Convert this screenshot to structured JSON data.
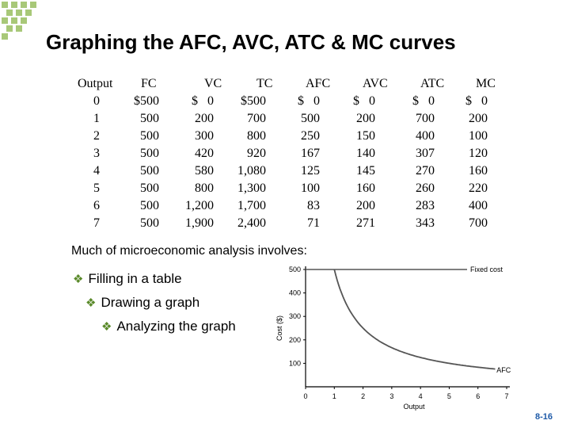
{
  "title": "Graphing the AFC, AVC, ATC & MC curves",
  "table": {
    "headers": [
      "Output",
      "FC",
      "VC",
      "TC",
      "AFC",
      "AVC",
      "ATC",
      "MC"
    ],
    "rows": [
      [
        "0",
        "$500",
        "$   0",
        "$500",
        "$   0",
        "$   0",
        "$   0",
        "$   0"
      ],
      [
        "1",
        "500",
        "200",
        "700",
        "500",
        "200",
        "700",
        "200"
      ],
      [
        "2",
        "500",
        "300",
        "800",
        "250",
        "150",
        "400",
        "100"
      ],
      [
        "3",
        "500",
        "420",
        "920",
        "167",
        "140",
        "307",
        "120"
      ],
      [
        "4",
        "500",
        "580",
        "1,080",
        "125",
        "145",
        "270",
        "160"
      ],
      [
        "5",
        "500",
        "800",
        "1,300",
        "100",
        "160",
        "260",
        "220"
      ],
      [
        "6",
        "500",
        "1,200",
        "1,700",
        "83",
        "200",
        "283",
        "400"
      ],
      [
        "7",
        "500",
        "1,900",
        "2,400",
        "71",
        "271",
        "343",
        "700"
      ]
    ]
  },
  "intro": "Much of microeconomic analysis involves:",
  "bullets": [
    "Filling in a table",
    "Drawing a graph",
    "Analyzing the graph"
  ],
  "graph": {
    "ylabel": "Cost ($)",
    "xlabel": "Output",
    "yticks": [
      "500",
      "400",
      "300",
      "200",
      "100"
    ],
    "xticks": [
      "0",
      "1",
      "2",
      "3",
      "4",
      "5",
      "6",
      "7"
    ],
    "fixed_label": "Fixed cost",
    "afc_label": "AFC"
  },
  "chart_data": {
    "type": "line",
    "xlabel": "Output",
    "ylabel": "Cost ($)",
    "xlim": [
      0,
      7
    ],
    "ylim": [
      0,
      500
    ],
    "series": [
      {
        "name": "Fixed cost",
        "x": [
          0,
          1,
          2,
          3,
          4,
          5,
          6,
          7
        ],
        "y": [
          500,
          500,
          500,
          500,
          500,
          500,
          500,
          500
        ]
      },
      {
        "name": "AFC",
        "x": [
          1,
          1.25,
          1.5,
          2,
          2.5,
          3,
          4,
          5,
          6,
          7
        ],
        "y": [
          500,
          400,
          333,
          250,
          200,
          167,
          125,
          100,
          83,
          71
        ]
      }
    ]
  },
  "colors": {
    "accent": "#a8c878",
    "bullet": "#5a8a2a",
    "page_number": "#1e5aa8"
  },
  "page_number": "8-16"
}
